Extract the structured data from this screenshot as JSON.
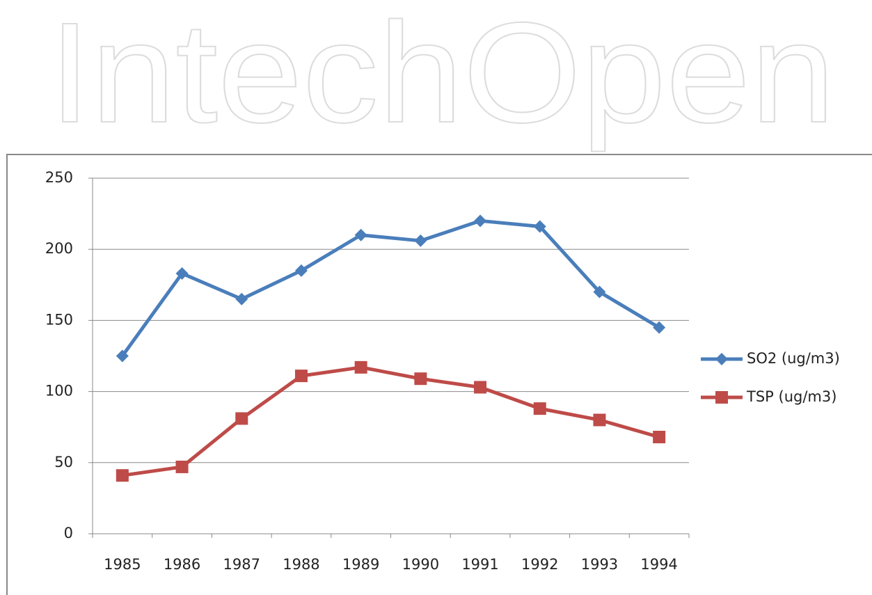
{
  "chart_data": {
    "type": "line",
    "watermark": "IntechOpen",
    "categories": [
      "1985",
      "1986",
      "1987",
      "1988",
      "1989",
      "1990",
      "1991",
      "1992",
      "1993",
      "1994"
    ],
    "series": [
      {
        "name": "SO2 (ug/m3)",
        "color": "#4a7ebb",
        "marker": "diamond",
        "values": [
          125,
          183,
          165,
          185,
          210,
          206,
          220,
          216,
          170,
          145
        ]
      },
      {
        "name": "TSP (ug/m3)",
        "color": "#be4b48",
        "marker": "square",
        "values": [
          41,
          47,
          81,
          111,
          117,
          109,
          103,
          88,
          80,
          68
        ]
      }
    ],
    "ylim": [
      0,
      250
    ],
    "yticks": [
      0,
      50,
      100,
      150,
      200,
      250
    ],
    "grid": true,
    "legend": "right"
  }
}
